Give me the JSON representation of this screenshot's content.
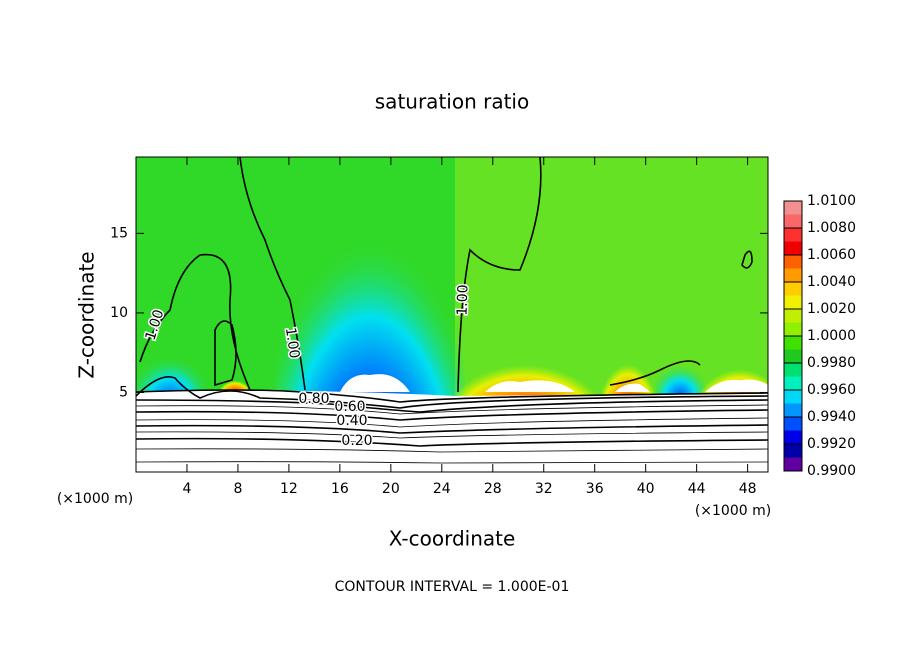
{
  "chart_data": {
    "type": "contour",
    "title": "saturation ratio",
    "x_label": "X-coordinate",
    "y_label": "Z-coordinate",
    "y_unit": "(×1000 m)",
    "x_unit": "(×1000 m)",
    "footer": "CONTOUR INTERVAL = 1.000E-01",
    "xlim": [
      0,
      49.6
    ],
    "ylim": [
      0,
      19.8
    ],
    "xticks": [
      4,
      8,
      12,
      16,
      20,
      24,
      28,
      32,
      36,
      40,
      44,
      48
    ],
    "yticks": [
      5,
      10,
      15
    ],
    "colorbar": {
      "lim": [
        0.99,
        1.01
      ],
      "ticks": [
        {
          "value": 1.01,
          "label": "1.0100"
        },
        {
          "value": 1.008,
          "label": "1.0080"
        },
        {
          "value": 1.006,
          "label": "1.0060"
        },
        {
          "value": 1.004,
          "label": "1.0040"
        },
        {
          "value": 1.002,
          "label": "1.0020"
        },
        {
          "value": 1.0,
          "label": "1.0000"
        },
        {
          "value": 0.998,
          "label": "0.9980"
        },
        {
          "value": 0.996,
          "label": "0.9960"
        },
        {
          "value": 0.994,
          "label": "0.9940"
        },
        {
          "value": 0.992,
          "label": "0.9920"
        },
        {
          "value": 0.99,
          "label": "0.9900"
        }
      ],
      "colors": [
        "#f09090",
        "#f86868",
        "#ff3030",
        "#f00000",
        "#ff6000",
        "#ff9a00",
        "#ffcc00",
        "#f0f000",
        "#c0f000",
        "#90f000",
        "#40e000",
        "#20c820",
        "#00e070",
        "#00f0c0",
        "#00d8f8",
        "#0098ff",
        "#0050ff",
        "#0000e8",
        "#0000a8",
        "#6000a0"
      ]
    },
    "contour_labels": [
      "1.00",
      "1.00",
      "1.00",
      "0.80",
      "0.60",
      "0.40",
      "0.20"
    ]
  }
}
